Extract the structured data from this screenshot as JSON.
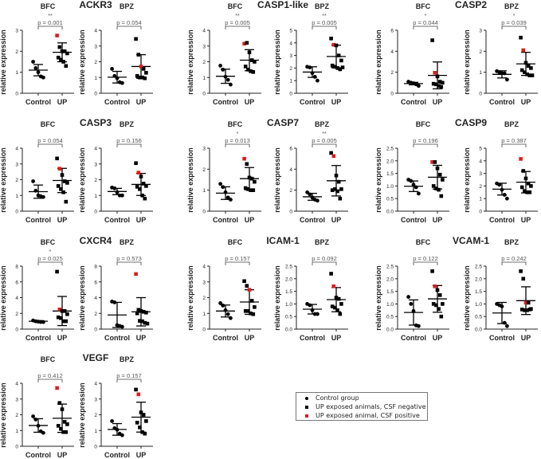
{
  "labels": {
    "ylabel": "relative expression",
    "control": "Control",
    "up": "UP"
  },
  "colors": {
    "point": "#000000",
    "csf_positive": "#e01b1b",
    "text": "#222222",
    "pvalue": "#555555"
  },
  "legend": {
    "items": [
      {
        "marker": "circle",
        "label": "Control  group"
      },
      {
        "marker": "square",
        "label": "UP exposed animals, CSF negative"
      },
      {
        "marker": "square-red",
        "label": "UP exposed animal, CSF positive"
      }
    ]
  },
  "chart_data": [
    {
      "type": "scatter",
      "gene": "ACKR3",
      "plots": [
        {
          "region": "BFC",
          "ylim": [
            0,
            3
          ],
          "step": 1,
          "p": "p = 0.001",
          "stars": "**",
          "control": [
            1.5,
            1.2,
            1.0,
            0.8,
            0.75
          ],
          "control_mean": 1.1,
          "control_sd": 0.27,
          "up": [
            2.75,
            2.2,
            2.0,
            2.0,
            1.9,
            1.7,
            1.6,
            1.5,
            1.3
          ],
          "up_red": [
            0
          ],
          "up_mean": 1.95,
          "up_sd": 0.45
        },
        {
          "region": "BPZ",
          "ylim": [
            0,
            4
          ],
          "step": 1,
          "p": "p = 0.054",
          "stars": "",
          "control": [
            1.55,
            1.1,
            0.95,
            0.7,
            0.65
          ],
          "control_mean": 1.02,
          "control_sd": 0.37,
          "up": [
            3.45,
            2.45,
            1.7,
            1.55,
            1.3,
            1.1,
            1.0,
            1.0,
            0.95
          ],
          "up_red": [
            2
          ],
          "up_mean": 1.7,
          "up_sd": 0.75
        }
      ]
    },
    {
      "type": "scatter",
      "gene": "CASP1-like",
      "plots": [
        {
          "region": "BFC",
          "ylim": [
            0,
            4
          ],
          "step": 1,
          "p": "p = 0.005",
          "stars": "**",
          "control": [
            1.75,
            1.5,
            1.05,
            0.85,
            0.55
          ],
          "control_mean": 1.08,
          "control_sd": 0.45,
          "up": [
            3.15,
            3.2,
            2.6,
            2.1,
            2.0,
            1.7,
            1.5,
            1.4,
            1.35
          ],
          "up_red": [
            0
          ],
          "up_mean": 2.1,
          "up_sd": 0.67
        },
        {
          "region": "BPZ",
          "ylim": [
            0,
            5
          ],
          "step": 1,
          "p": "p = 0.005",
          "stars": "**",
          "control": [
            2.1,
            2.05,
            1.6,
            1.3,
            1.0
          ],
          "control_mean": 1.68,
          "control_sd": 0.42,
          "up": [
            4.35,
            3.85,
            3.8,
            3.0,
            2.6,
            2.2,
            2.1,
            2.0,
            1.9,
            2.05
          ],
          "up_red": [
            1
          ],
          "up_mean": 2.92,
          "up_sd": 0.9
        }
      ]
    },
    {
      "type": "scatter",
      "gene": "CASP2",
      "plots": [
        {
          "region": "BFC",
          "ylim": [
            0,
            6
          ],
          "step": 2,
          "p": "p = 0.044",
          "stars": "*",
          "control": [
            1.1,
            1.0,
            0.95,
            0.85,
            0.7
          ],
          "control_mean": 0.92,
          "control_sd": 0.12,
          "up": [
            5.05,
            1.95,
            1.6,
            1.1,
            1.0,
            0.9,
            0.85,
            0.7,
            0.6
          ],
          "up_red": [
            1
          ],
          "up_mean": 1.7,
          "up_sd": 1.28
        },
        {
          "region": "BPZ",
          "ylim": [
            0,
            3
          ],
          "step": 1,
          "p": "p = 0.039",
          "stars": "*",
          "control": [
            1.05,
            1.0,
            0.95,
            0.95,
            0.65
          ],
          "control_mean": 0.9,
          "control_sd": 0.17,
          "up": [
            2.65,
            2.05,
            1.45,
            1.3,
            1.2,
            1.1,
            1.0,
            0.9,
            0.85,
            0.85
          ],
          "up_red": [
            1
          ],
          "up_mean": 1.4,
          "up_sd": 0.55
        }
      ]
    },
    {
      "type": "scatter",
      "gene": "CASP3",
      "plots": [
        {
          "region": "BFC",
          "ylim": [
            0,
            4
          ],
          "step": 1,
          "p": "p = 0.054",
          "stars": "",
          "control": [
            1.9,
            1.3,
            1.0,
            0.95,
            0.9
          ],
          "control_mean": 1.24,
          "control_sd": 0.42,
          "up": [
            3.35,
            2.7,
            2.3,
            1.9,
            1.8,
            1.6,
            1.4,
            1.2,
            0.6
          ],
          "up_red": [
            1
          ],
          "up_mean": 1.95,
          "up_sd": 0.77
        },
        {
          "region": "BPZ",
          "ylim": [
            0,
            4
          ],
          "step": 1,
          "p": "p = 0.156",
          "stars": "",
          "control": [
            1.5,
            1.45,
            1.2,
            1.0,
            1.0
          ],
          "control_mean": 1.25,
          "control_sd": 0.2,
          "up": [
            3.05,
            2.45,
            2.2,
            1.75,
            1.6,
            1.55,
            1.4,
            1.0,
            0.8
          ],
          "up_red": [
            1
          ],
          "up_mean": 1.7,
          "up_sd": 0.7
        }
      ]
    },
    {
      "type": "scatter",
      "gene": "CASP7",
      "plots": [
        {
          "region": "BFC",
          "ylim": [
            0,
            3
          ],
          "step": 1,
          "p": "p = 0.013",
          "stars": "*",
          "control": [
            1.3,
            1.15,
            0.9,
            0.65,
            0.55
          ],
          "control_mean": 0.86,
          "control_sd": 0.3,
          "up": [
            2.5,
            2.25,
            1.6,
            1.55,
            1.4,
            1.1,
            1.05,
            1.0,
            1.0
          ],
          "up_red": [
            0
          ],
          "up_mean": 1.55,
          "up_sd": 0.53
        },
        {
          "region": "BPZ",
          "ylim": [
            0,
            6
          ],
          "step": 2,
          "p": "p = 0.005",
          "stars": "**",
          "control": [
            1.8,
            1.6,
            1.3,
            1.1,
            1.0
          ],
          "control_mean": 1.37,
          "control_sd": 0.33,
          "up": [
            5.55,
            5.25,
            3.4,
            2.8,
            2.1,
            2.0,
            2.1,
            1.9,
            1.2
          ],
          "up_red": [
            1
          ],
          "up_mean": 2.9,
          "up_sd": 1.45
        }
      ]
    },
    {
      "type": "scatter",
      "gene": "CASP9",
      "plots": [
        {
          "region": "BFC",
          "ylim": [
            0,
            2.5
          ],
          "step": 0.5,
          "p": "p = 0.196",
          "stars": "",
          "control": [
            1.25,
            1.2,
            1.05,
            0.95,
            0.7
          ],
          "control_mean": 0.99,
          "control_sd": 0.21,
          "up": [
            1.95,
            1.95,
            1.7,
            1.45,
            1.25,
            1.0,
            0.9,
            0.85,
            0.6
          ],
          "up_red": [
            0
          ],
          "up_mean": 1.35,
          "up_sd": 0.47
        },
        {
          "region": "BPZ",
          "ylim": [
            0,
            5
          ],
          "step": 1,
          "p": "p = 0.387",
          "stars": "",
          "control": [
            2.2,
            2.1,
            1.7,
            1.3,
            1.0
          ],
          "control_mean": 1.75,
          "control_sd": 0.47,
          "up": [
            4.15,
            3.2,
            2.6,
            2.2,
            2.0,
            1.9,
            1.6,
            1.5,
            1.5
          ],
          "up_red": [
            0
          ],
          "up_mean": 2.3,
          "up_sd": 0.85
        }
      ]
    },
    {
      "type": "scatter",
      "gene": "CXCR4",
      "plots": [
        {
          "region": "BFC",
          "ylim": [
            0,
            8
          ],
          "step": 2,
          "p": "p = 0.025",
          "stars": "*",
          "control": [
            1.1,
            1.0,
            0.95,
            0.9,
            0.9
          ],
          "control_mean": 1.0,
          "control_sd": 0.08,
          "up": [
            7.3,
            2.5,
            2.3,
            2.3,
            1.9,
            1.5,
            1.4,
            1.0,
            1.0
          ],
          "up_red": [
            1
          ],
          "up_mean": 2.3,
          "up_sd": 1.85
        },
        {
          "region": "BPZ",
          "ylim": [
            0,
            8
          ],
          "step": 2,
          "p": "p = 0.573",
          "stars": "",
          "control": [
            3.5,
            3.4,
            0.5,
            0.4,
            0.3
          ],
          "control_mean": 1.8,
          "control_sd": 1.6,
          "up": [
            7.0,
            2.45,
            2.3,
            2.2,
            2.1,
            2.0,
            1.05,
            1.0,
            0.8,
            0.7
          ],
          "up_red": [
            0
          ],
          "up_mean": 2.2,
          "up_sd": 1.8
        }
      ]
    },
    {
      "type": "scatter",
      "gene": "ICAM-1",
      "plots": [
        {
          "region": "BFC",
          "ylim": [
            0,
            4
          ],
          "step": 1,
          "p": "p = 0.157",
          "stars": "",
          "control": [
            1.65,
            1.5,
            1.2,
            0.95,
            0.7
          ],
          "control_mean": 1.15,
          "control_sd": 0.38,
          "up": [
            3.05,
            2.75,
            2.5,
            1.8,
            1.4,
            1.15,
            1.15,
            1.0,
            0.95
          ],
          "up_red": [
            2
          ],
          "up_mean": 1.72,
          "up_sd": 0.78
        },
        {
          "region": "BPZ",
          "ylim": [
            0,
            2.5
          ],
          "step": 0.5,
          "p": "p = 0.092",
          "stars": "",
          "control": [
            1.0,
            0.95,
            0.75,
            0.6,
            0.6
          ],
          "control_mean": 0.79,
          "control_sd": 0.19,
          "up": [
            2.2,
            1.7,
            1.25,
            1.2,
            1.0,
            0.9,
            0.85,
            0.75,
            0.6
          ],
          "up_red": [
            1
          ],
          "up_mean": 1.17,
          "up_sd": 0.48
        }
      ]
    },
    {
      "type": "scatter",
      "gene": "VCAM-1",
      "plots": [
        {
          "region": "BFC",
          "ylim": [
            0,
            2.5
          ],
          "step": 0.5,
          "p": "p = 0.122",
          "stars": "",
          "control": [
            1.28,
            1.0,
            0.72,
            0.15,
            0.12
          ],
          "control_mean": 0.66,
          "control_sd": 0.5,
          "up": [
            2.3,
            1.7,
            1.55,
            1.35,
            1.0,
            1.0,
            0.95,
            0.8,
            0.5
          ],
          "up_red": [
            1
          ],
          "up_mean": 1.2,
          "up_sd": 0.53
        },
        {
          "region": "BPZ",
          "ylim": [
            0,
            2.5
          ],
          "step": 0.5,
          "p": "p = 0.242",
          "stars": "",
          "control": [
            1.0,
            0.95,
            0.9,
            0.25,
            0.12
          ],
          "control_mean": 0.64,
          "control_sd": 0.42,
          "up": [
            2.3,
            2.0,
            1.05,
            1.05,
            0.8,
            0.78,
            0.75,
            0.75,
            0.78
          ],
          "up_red": [
            2
          ],
          "up_mean": 1.13,
          "up_sd": 0.55
        }
      ]
    },
    {
      "type": "scatter",
      "gene": "VEGF",
      "plots": [
        {
          "region": "BFC",
          "ylim": [
            0,
            4
          ],
          "step": 1,
          "p": "p = 0.412",
          "stars": "",
          "control": [
            1.9,
            1.7,
            1.3,
            0.95,
            0.85
          ],
          "control_mean": 1.32,
          "control_sd": 0.43,
          "up": [
            3.7,
            2.75,
            2.35,
            1.55,
            1.4,
            1.3,
            1.1,
            0.9,
            0.9
          ],
          "up_red": [
            0
          ],
          "up_mean": 1.78,
          "up_sd": 0.9
        },
        {
          "region": "BPZ",
          "ylim": [
            0,
            4
          ],
          "step": 1,
          "p": "p = 0.157",
          "stars": "",
          "control": [
            1.6,
            1.15,
            1.05,
            0.8,
            0.7
          ],
          "control_mean": 1.07,
          "control_sd": 0.37,
          "up": [
            3.6,
            3.3,
            2.15,
            2.0,
            1.6,
            1.5,
            1.2,
            0.9,
            0.8
          ],
          "up_red": [
            1
          ],
          "up_mean": 1.85,
          "up_sd": 0.95
        }
      ]
    }
  ]
}
